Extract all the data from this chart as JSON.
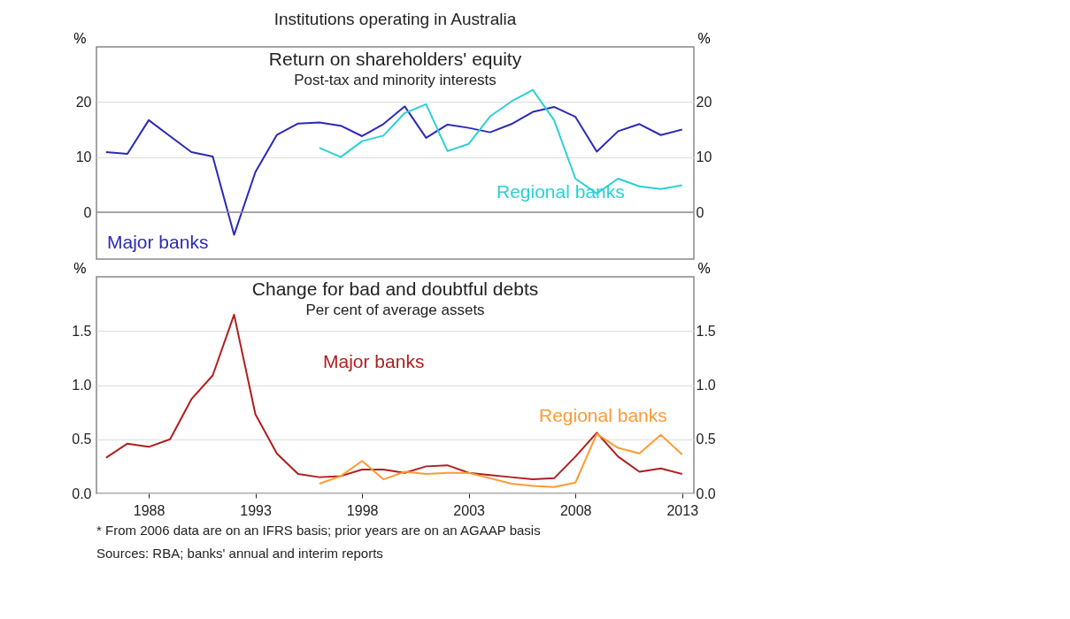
{
  "chart_data": [
    {
      "type": "line",
      "title": "Return on shareholders' equity",
      "subtitle": "Post-tax and minority interests",
      "ylabel": "%",
      "y2label": "%",
      "annotations": [
        "Institutions operating in Australia"
      ],
      "xlim": [
        1985.55,
        2013.55
      ],
      "ylim": [
        -8.5,
        30
      ],
      "yticks": [
        0,
        10,
        20
      ],
      "y2lim": [
        -8.5,
        30
      ],
      "y2ticks": [
        0,
        10,
        20
      ],
      "grid": "y",
      "legend": false,
      "tick_labels": "y",
      "line_style": "solid",
      "marker": "none",
      "ref_lines": [
        {
          "axis": "y",
          "value": 0,
          "label": null,
          "color": "#8c8c8c"
        }
      ],
      "series": [
        {
          "name": "Major banks",
          "color": "#2a2ab8",
          "x": [
            1986,
            1987,
            1988,
            1989,
            1990,
            1991,
            1992,
            1993,
            1994,
            1995,
            1996,
            1997,
            1998,
            1999,
            2000,
            2001,
            2002,
            2003,
            2004,
            2005,
            2006,
            2007,
            2008,
            2009,
            2010,
            2011,
            2012,
            2013
          ],
          "values": [
            10.9,
            10.6,
            16.7,
            13.8,
            10.9,
            10.1,
            -4.1,
            7.3,
            14.0,
            16.1,
            16.3,
            15.7,
            13.8,
            16.0,
            19.2,
            13.5,
            15.9,
            15.3,
            14.5,
            16.0,
            18.2,
            19.1,
            17.3,
            11.0,
            14.7,
            16.0,
            14.0,
            15.0
          ]
        },
        {
          "name": "Regional banks",
          "color": "#2cd0d6",
          "x": [
            1996,
            1997,
            1998,
            1999,
            2000,
            2001,
            2002,
            2003,
            2004,
            2005,
            2006,
            2007,
            2008,
            2009,
            2010,
            2011,
            2012,
            2013
          ],
          "values": [
            11.7,
            10.0,
            12.9,
            13.9,
            18.0,
            19.6,
            11.1,
            12.4,
            17.4,
            20.1,
            22.2,
            16.7,
            6.1,
            3.4,
            6.1,
            4.7,
            4.2,
            4.9
          ]
        }
      ]
    },
    {
      "type": "line",
      "title": "Change for bad and doubtful debts",
      "subtitle": "Per cent of average assets",
      "ylabel": "%",
      "y2label": "%",
      "annotations": [
        "*      From 2006 data are on an IFRS basis; prior years are on an AGAAP basis",
        "Sources:  RBA; banks' annual and interim reports"
      ],
      "xlim": [
        1985.55,
        2013.55
      ],
      "xticks": [
        1988,
        1993,
        1998,
        2003,
        2008,
        2013
      ],
      "ylim": [
        0,
        2.0
      ],
      "yticks": [
        {
          "value": 0,
          "label": "0.0"
        },
        0.5,
        {
          "value": 1,
          "label": "1.0"
        },
        1.5
      ],
      "y2lim": [
        0,
        2.0
      ],
      "y2ticks": [
        {
          "value": 0,
          "label": "0.0"
        },
        0.5,
        {
          "value": 1,
          "label": "1.0"
        },
        1.5
      ],
      "grid": "y",
      "legend": false,
      "line_style": "solid",
      "marker": "none",
      "series": [
        {
          "name": "Major banks",
          "color": "#b01e1e",
          "x": [
            1986,
            1987,
            1988,
            1989,
            1990,
            1991,
            1992,
            1993,
            1994,
            1995,
            1996,
            1997,
            1998,
            1999,
            2000,
            2001,
            2002,
            2003,
            2004,
            2005,
            2006,
            2007,
            2008,
            2009,
            2010,
            2011,
            2012,
            2013
          ],
          "values": [
            0.33,
            0.46,
            0.43,
            0.5,
            0.87,
            1.09,
            1.65,
            0.73,
            0.37,
            0.18,
            0.15,
            0.16,
            0.22,
            0.22,
            0.19,
            0.25,
            0.26,
            0.19,
            0.17,
            0.15,
            0.13,
            0.14,
            0.34,
            0.56,
            0.34,
            0.2,
            0.23,
            0.18
          ]
        },
        {
          "name": "Regional banks",
          "color": "#ff9a33",
          "x": [
            1996,
            1997,
            1998,
            1999,
            2000,
            2001,
            2002,
            2003,
            2004,
            2005,
            2006,
            2007,
            2008,
            2009,
            2010,
            2011,
            2012,
            2013
          ],
          "values": [
            0.09,
            0.16,
            0.3,
            0.13,
            0.2,
            0.18,
            0.19,
            0.19,
            0.14,
            0.09,
            0.07,
            0.06,
            0.1,
            0.55,
            0.42,
            0.37,
            0.54,
            0.36
          ]
        }
      ]
    }
  ]
}
